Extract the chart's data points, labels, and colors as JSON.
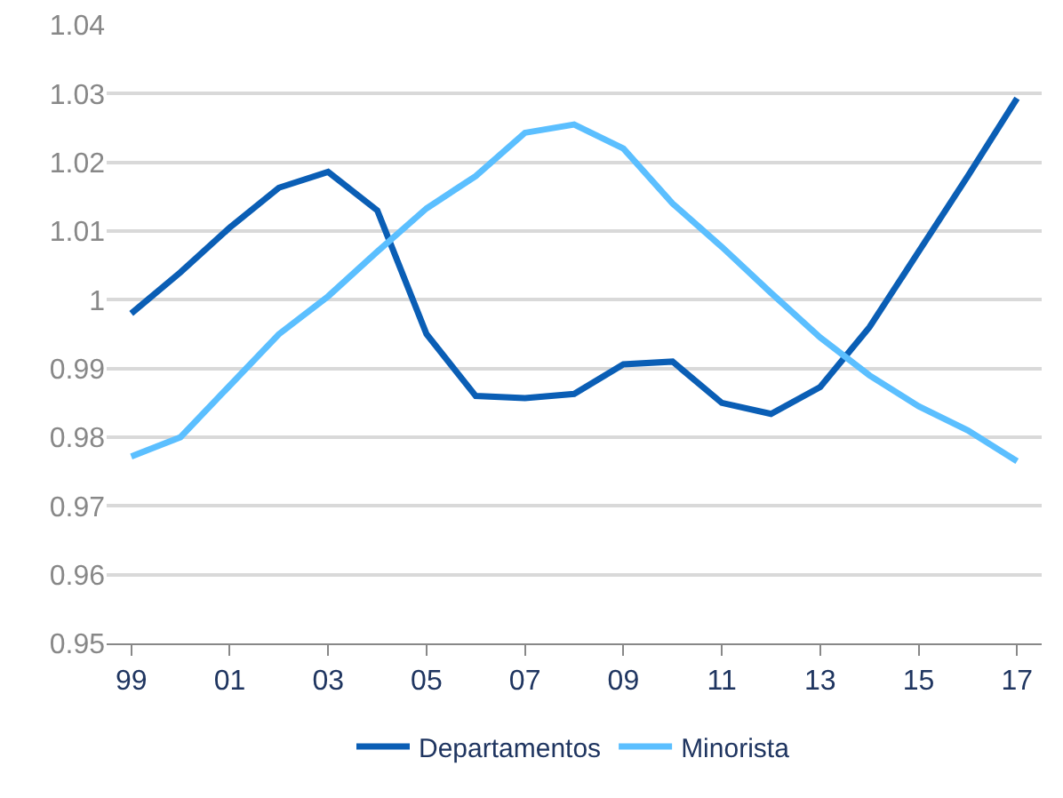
{
  "chart_data": {
    "type": "line",
    "categories": [
      "99",
      null,
      "01",
      null,
      "03",
      null,
      "05",
      null,
      "07",
      null,
      "09",
      null,
      "11",
      null,
      "13",
      null,
      "15",
      null,
      "17"
    ],
    "series": [
      {
        "name": "Departamentos",
        "color": "#0a5eb5",
        "values": [
          0.998,
          1.004,
          1.0105,
          1.0163,
          1.0186,
          1.013,
          0.995,
          0.986,
          0.9857,
          0.9863,
          0.9906,
          0.991,
          0.985,
          0.9834,
          0.9873,
          0.996,
          1.007,
          1.018,
          1.0293
        ]
      },
      {
        "name": "Minorista",
        "color": "#5bbfff",
        "values": [
          0.9772,
          0.98,
          0.9875,
          0.995,
          1.0005,
          1.007,
          1.0133,
          1.018,
          1.0243,
          1.0255,
          1.022,
          1.014,
          1.0077,
          1.001,
          0.9945,
          0.989,
          0.9845,
          0.981,
          0.9765
        ]
      }
    ],
    "ylim": [
      0.95,
      1.04
    ],
    "yticks": [
      0.95,
      0.96,
      0.97,
      0.98,
      0.99,
      {
        "value": 1,
        "label": "1"
      },
      1.01,
      1.02,
      1.03,
      1.04
    ],
    "grid": "y",
    "legend": "bottom",
    "marker": "none",
    "line_style": "solid"
  }
}
